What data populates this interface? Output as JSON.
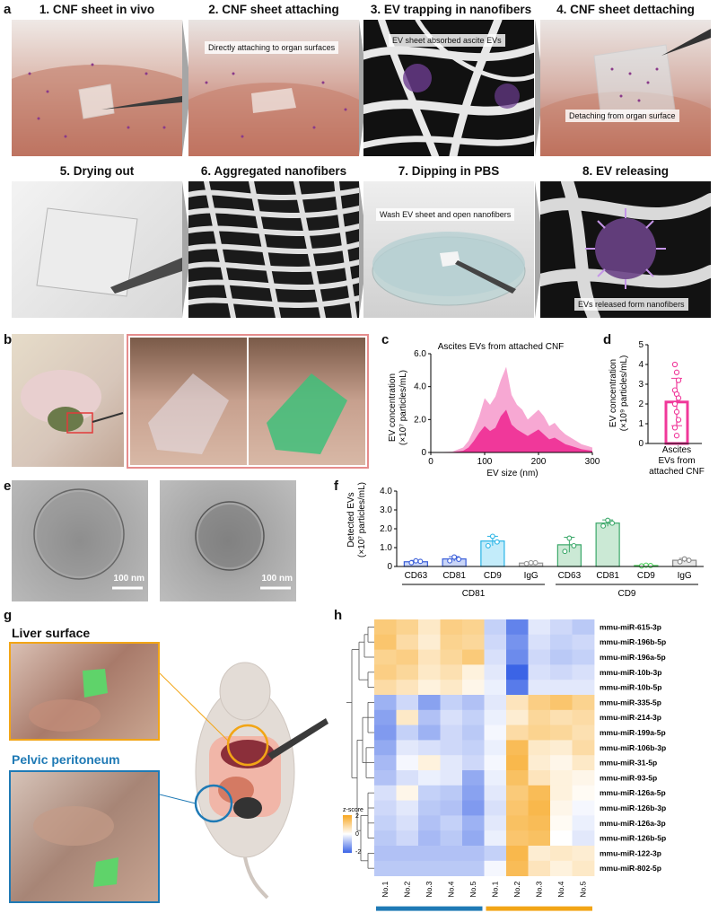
{
  "labels": {
    "a": "a",
    "b": "b",
    "c": "c",
    "d": "d",
    "e": "e",
    "f": "f",
    "g": "g",
    "h": "h"
  },
  "panel_a": {
    "steps": [
      {
        "title": "1. CNF sheet in vivo",
        "caption": ""
      },
      {
        "title": "2. CNF sheet attaching",
        "caption": "Directly attaching to organ surfaces"
      },
      {
        "title": "3. EV trapping in nanofibers",
        "caption": "EV sheet absorbed ascite EVs"
      },
      {
        "title": "4. CNF sheet dettaching",
        "caption": "Detaching from organ surface"
      },
      {
        "title": "5. Drying out",
        "caption": ""
      },
      {
        "title": "6. Aggregated nanofibers",
        "caption": ""
      },
      {
        "title": "7. Dipping in PBS",
        "caption": "Wash EV sheet and open nanofibers"
      },
      {
        "title": "8. EV releasing",
        "caption": "EVs released form nanofibers"
      }
    ]
  },
  "panel_e": {
    "scalebar_left": "100 nm",
    "scalebar_right": "100 nm"
  },
  "panel_g": {
    "liver_label": "Liver surface",
    "pelvic_label": "Pelvic peritoneum",
    "liver_color": "#f2a516",
    "pelvic_color": "#1f7ab5"
  },
  "chart_data": [
    {
      "id": "c",
      "type": "area",
      "title": "Ascites EVs from attached CNF",
      "xlabel": "EV size (nm)",
      "ylabel_line1": "EV concentration",
      "ylabel_line2": "(×10⁷ particles/mL)",
      "xlim": [
        0,
        300
      ],
      "ylim": [
        0,
        6
      ],
      "xticks": [
        "0",
        "100",
        "200",
        "300"
      ],
      "yticks": [
        "0",
        "2.0",
        "4.0",
        "6.0"
      ],
      "x": [
        0,
        40,
        60,
        70,
        80,
        90,
        100,
        110,
        120,
        130,
        140,
        150,
        160,
        170,
        180,
        190,
        200,
        210,
        220,
        230,
        240,
        250,
        260,
        270,
        280,
        290,
        300
      ],
      "mean": [
        0,
        0.02,
        0.1,
        0.3,
        0.7,
        1.2,
        1.6,
        1.3,
        1.5,
        2.2,
        2.6,
        1.7,
        1.4,
        1.2,
        1.0,
        1.2,
        1.4,
        1.1,
        0.8,
        0.9,
        0.7,
        0.5,
        0.4,
        0.3,
        0.2,
        0.15,
        0.1
      ],
      "upper": [
        0,
        0.05,
        0.3,
        0.7,
        1.4,
        2.2,
        3.3,
        2.9,
        3.4,
        4.4,
        5.2,
        3.5,
        2.9,
        2.6,
        2.0,
        2.3,
        2.6,
        2.2,
        1.6,
        1.8,
        1.4,
        1.1,
        0.9,
        0.7,
        0.5,
        0.4,
        0.3
      ],
      "colors": {
        "mean": "#f0389a",
        "upper": "#f7a8d3"
      }
    },
    {
      "id": "d",
      "type": "bar",
      "categories_line1": "Ascites",
      "categories_line2": "EVs from",
      "categories_line3": "attached CNF",
      "ylabel_line1": "EV concentration",
      "ylabel_line2": "(×10⁹ particles/mL)",
      "ylim": [
        0,
        5
      ],
      "yticks": [
        "0",
        "1",
        "2",
        "3",
        "4",
        "5"
      ],
      "mean": 2.1,
      "sd": 1.2,
      "points": [
        4.0,
        3.6,
        3.2,
        2.7,
        2.5,
        2.3,
        2.0,
        1.6,
        1.2,
        0.8,
        0.4
      ],
      "color": "#f0389a"
    },
    {
      "id": "f",
      "type": "bar",
      "ylabel_line1": "Detected EVs",
      "ylabel_line2": "(×10⁷ particles/mL)",
      "ylim": [
        0,
        4
      ],
      "yticks": [
        "0",
        "1.0",
        "2.0",
        "3.0",
        "4.0"
      ],
      "categories": [
        "CD63",
        "CD81",
        "CD9",
        "IgG",
        "CD63",
        "CD81",
        "CD9",
        "IgG"
      ],
      "groups": [
        "CD81",
        "CD9"
      ],
      "values": [
        0.25,
        0.4,
        1.35,
        0.18,
        1.15,
        2.3,
        0.05,
        0.33
      ],
      "sd": [
        0.07,
        0.12,
        0.25,
        0.04,
        0.4,
        0.17,
        0.03,
        0.1
      ],
      "points": [
        [
          0.2,
          0.3,
          0.27
        ],
        [
          0.3,
          0.5,
          0.38
        ],
        [
          1.1,
          1.6,
          1.3
        ],
        [
          0.15,
          0.2,
          0.2
        ],
        [
          0.8,
          1.5,
          1.1
        ],
        [
          2.15,
          2.45,
          2.3
        ],
        [
          0.03,
          0.07,
          0.05
        ],
        [
          0.25,
          0.4,
          0.33
        ]
      ],
      "colors": [
        "#3b5fd9",
        "#3b5fd9",
        "#28b4e6",
        "#999999",
        "#3ca86a",
        "#3ca86a",
        "#4bd15a",
        "#888888"
      ],
      "fills": [
        "#c9d5f7",
        "#c9d5f7",
        "#c3ecfa",
        "#e6e6e6",
        "#cbe9d5",
        "#cbe9d5",
        "#d4f5d6",
        "#e6e6e6"
      ]
    },
    {
      "id": "h",
      "type": "heatmap",
      "rows": [
        "mmu-miR-615-3p",
        "mmu-miR-196b-5p",
        "mmu-miR-196a-5p",
        "mmu-miR-10b-3p",
        "mmu-miR-10b-5p",
        "mmu-miR-335-5p",
        "mmu-miR-214-3p",
        "mmu-miR-199a-5p",
        "mmu-miR-106b-3p",
        "mmu-miR-31-5p",
        "mmu-miR-93-5p",
        "mmu-miR-126a-5p",
        "mmu-miR-126b-3p",
        "mmu-miR-126a-3p",
        "mmu-miR-126b-5p",
        "mmu-miR-122-3p",
        "mmu-miR-802-5p"
      ],
      "columns": [
        "No.1",
        "No.2",
        "No.3",
        "No.4",
        "No.5",
        "No.1",
        "No.2",
        "No.3",
        "No.4",
        "No.5"
      ],
      "groups": [
        {
          "name": "Pelvic peritoneum",
          "color": "#1f7ab5"
        },
        {
          "name": "Liver surface",
          "color": "#f2a516"
        }
      ],
      "legend_title": "z-score",
      "legend_ticks": [
        "2",
        "0",
        "-2"
      ],
      "zlim": [
        -2,
        2
      ],
      "values": [
        [
          1.2,
          1.0,
          0.5,
          1.1,
          1.0,
          -0.6,
          -1.6,
          -0.3,
          -0.5,
          -0.7
        ],
        [
          1.3,
          0.8,
          0.4,
          1.0,
          0.9,
          -0.5,
          -1.4,
          -0.4,
          -0.6,
          -0.5
        ],
        [
          1.0,
          1.1,
          0.6,
          0.9,
          1.2,
          -0.4,
          -1.5,
          -0.5,
          -0.7,
          -0.6
        ],
        [
          1.1,
          0.9,
          0.5,
          0.7,
          0.3,
          -0.3,
          -2.0,
          -0.4,
          -0.5,
          -0.4
        ],
        [
          0.8,
          0.6,
          0.3,
          0.5,
          0.2,
          -0.2,
          -1.7,
          -0.3,
          -0.3,
          -0.3
        ],
        [
          -1.0,
          -0.5,
          -1.2,
          -0.6,
          -0.8,
          -0.3,
          0.6,
          1.1,
          1.3,
          1.0
        ],
        [
          -1.2,
          0.5,
          -0.8,
          -0.4,
          -0.6,
          -0.2,
          0.4,
          0.9,
          0.7,
          0.8
        ],
        [
          -1.3,
          -0.6,
          -1.0,
          -0.5,
          -0.7,
          -0.1,
          0.8,
          1.0,
          0.9,
          0.7
        ],
        [
          -1.1,
          -0.3,
          -0.4,
          -0.5,
          -0.6,
          -0.2,
          1.5,
          0.5,
          0.4,
          0.8
        ],
        [
          -0.9,
          -0.1,
          0.3,
          -0.3,
          -0.5,
          -0.1,
          1.6,
          0.4,
          0.2,
          0.5
        ],
        [
          -0.8,
          -0.4,
          -0.2,
          -0.3,
          -1.1,
          -0.2,
          1.4,
          0.6,
          0.3,
          0.2
        ],
        [
          -0.4,
          0.2,
          -0.6,
          -0.7,
          -1.2,
          -0.3,
          1.2,
          1.5,
          0.3,
          0.1
        ],
        [
          -0.5,
          -0.3,
          -0.7,
          -0.8,
          -1.3,
          -0.4,
          1.3,
          1.6,
          0.2,
          -0.1
        ],
        [
          -0.6,
          -0.4,
          -0.8,
          -0.6,
          -1.0,
          -0.3,
          1.4,
          1.5,
          0.1,
          -0.2
        ],
        [
          -0.7,
          -0.5,
          -0.9,
          -0.7,
          -1.1,
          -0.2,
          1.3,
          1.4,
          0.0,
          -0.3
        ],
        [
          -0.8,
          -0.8,
          -0.8,
          -0.8,
          -0.8,
          -0.6,
          1.6,
          0.4,
          0.5,
          0.4
        ],
        [
          -0.7,
          -0.7,
          -0.7,
          -0.7,
          -0.7,
          -0.1,
          1.5,
          0.6,
          0.3,
          0.5
        ]
      ]
    }
  ]
}
